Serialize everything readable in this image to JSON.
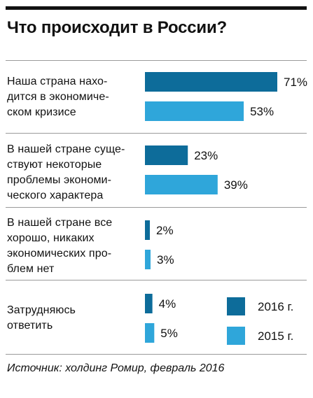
{
  "title": "Что происходит в России?",
  "source": "Источник: холдинг Ромир, февраль 2016",
  "chart_data": {
    "type": "bar",
    "orientation": "horizontal",
    "title": "Что происходит в России?",
    "categories": [
      "Наша страна нахо-\nдится в экономиче-\nском кризисе",
      "В нашей стране суще-\nствуют некоторые\nпроблемы экономи-\nческого характера",
      "В нашей стране все\nхорошо, никаких\nэкономических про-\nблем нет",
      "Затрудняюсь\nответить"
    ],
    "series": [
      {
        "name": "2016 г.",
        "color": "#0d6c9a",
        "values": [
          71,
          23,
          2,
          4
        ],
        "labels": [
          "71%",
          "23%",
          "2%",
          "4%"
        ]
      },
      {
        "name": "2015 г.",
        "color": "#2fa6da",
        "values": [
          53,
          39,
          3,
          5
        ],
        "labels": [
          "53%",
          "39%",
          "3%",
          "5%"
        ]
      }
    ],
    "xlim": [
      0,
      71
    ],
    "legend_position": "bottom-right",
    "grid": false
  }
}
